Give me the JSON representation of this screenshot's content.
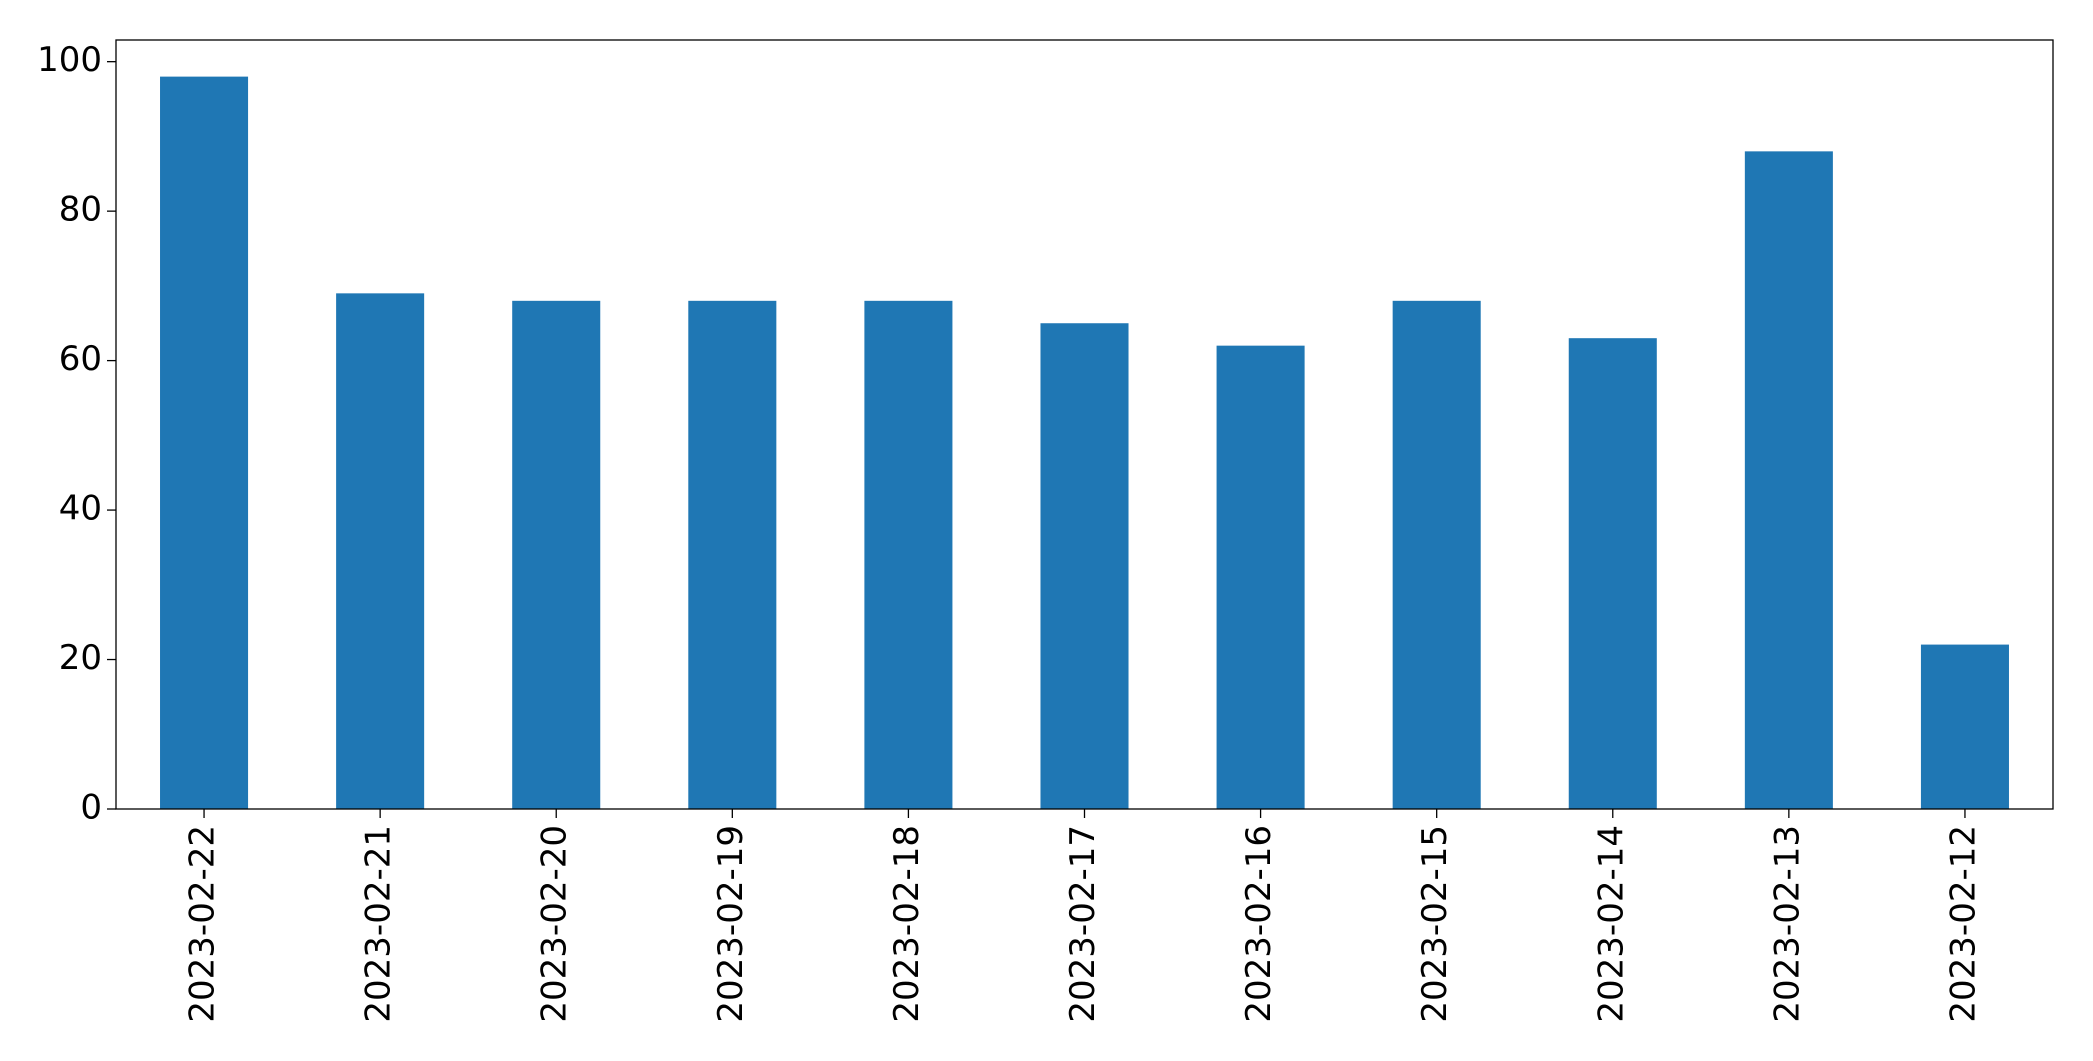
{
  "chart_data": {
    "type": "bar",
    "categories": [
      "2023-02-22",
      "2023-02-21",
      "2023-02-20",
      "2023-02-19",
      "2023-02-18",
      "2023-02-17",
      "2023-02-16",
      "2023-02-15",
      "2023-02-14",
      "2023-02-13",
      "2023-02-12"
    ],
    "values": [
      98,
      69,
      68,
      68,
      68,
      65,
      62,
      68,
      63,
      88,
      22
    ],
    "color": "#1f77b4",
    "ylim": [
      0,
      102.9
    ],
    "yticks": [
      0,
      20,
      40,
      60,
      80,
      100
    ],
    "grid": false
  }
}
